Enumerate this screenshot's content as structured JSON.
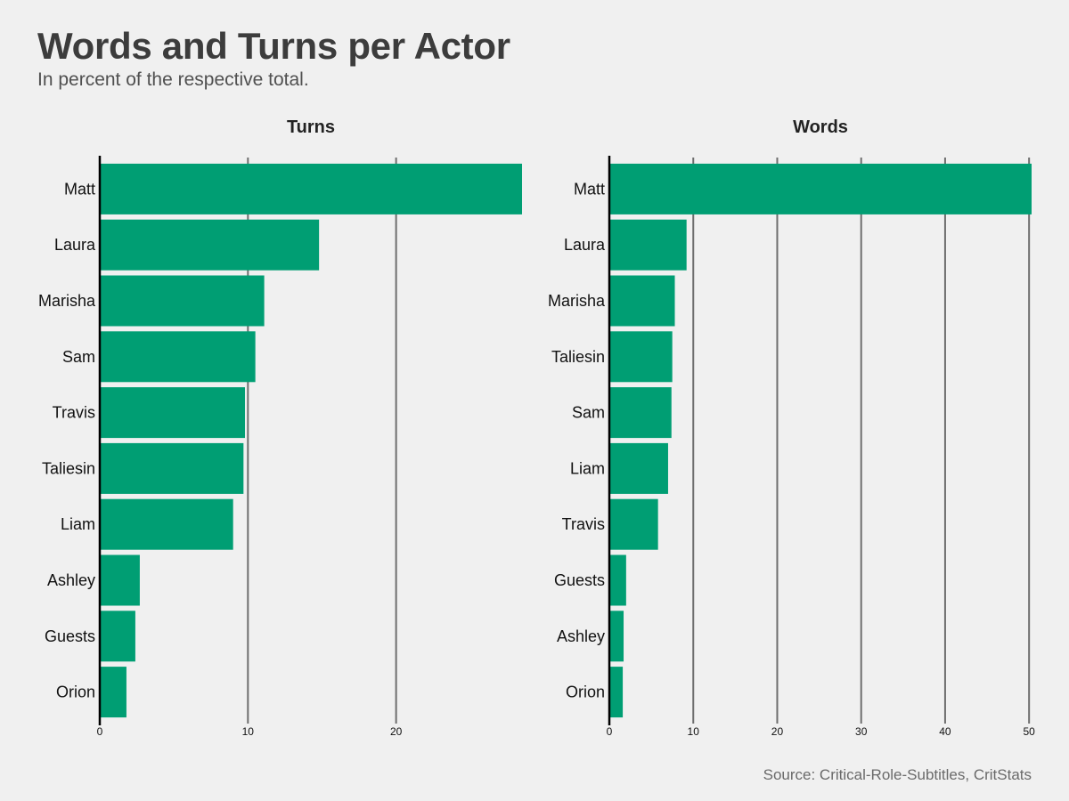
{
  "title": "Words and Turns per Actor",
  "subtitle": "In percent of the respective total.",
  "source": "Source: Critical-Role-Subtitles, CritStats",
  "colors": {
    "bar": "#009e73",
    "grid": "#6e6e6e",
    "axis": "#000000",
    "background": "#f0f0f0"
  },
  "chart_data": [
    {
      "type": "bar",
      "orientation": "horizontal",
      "title": "Turns",
      "categories": [
        "Matt",
        "Laura",
        "Marisha",
        "Sam",
        "Travis",
        "Taliesin",
        "Liam",
        "Ashley",
        "Guests",
        "Orion"
      ],
      "values": [
        28.5,
        14.8,
        11.1,
        10.5,
        9.8,
        9.7,
        9.0,
        2.7,
        2.4,
        1.8
      ],
      "xlim": [
        0,
        28.5
      ],
      "xticks": [
        0,
        10,
        20
      ],
      "grid": "vertical"
    },
    {
      "type": "bar",
      "orientation": "horizontal",
      "title": "Words",
      "categories": [
        "Matt",
        "Laura",
        "Marisha",
        "Taliesin",
        "Sam",
        "Liam",
        "Travis",
        "Guests",
        "Ashley",
        "Orion"
      ],
      "values": [
        50.3,
        9.2,
        7.8,
        7.5,
        7.4,
        7.0,
        5.8,
        2.0,
        1.7,
        1.6
      ],
      "xlim": [
        0,
        50.3
      ],
      "xticks": [
        0,
        10,
        20,
        30,
        40,
        50
      ],
      "grid": "vertical"
    }
  ]
}
